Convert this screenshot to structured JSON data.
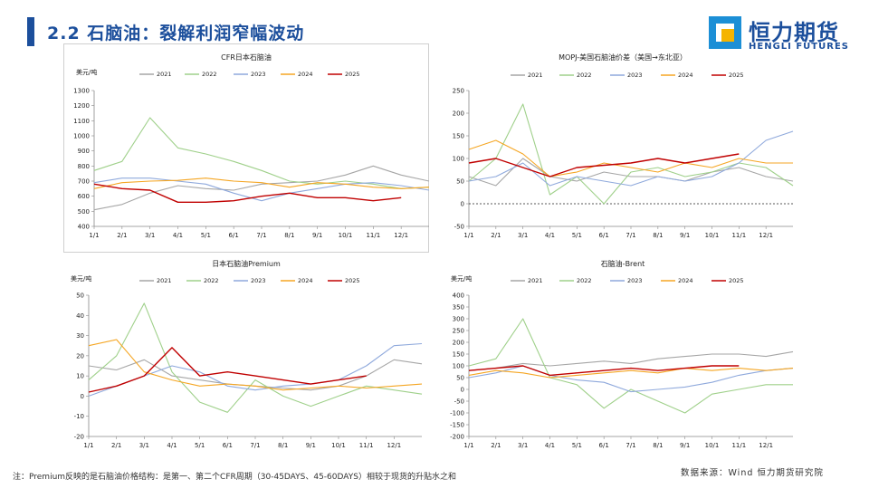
{
  "header": {
    "title": "2.2 石脑油：裂解利润窄幅波动"
  },
  "logo": {
    "name": "恒力期货",
    "subtitle": "HENGLI FUTURES"
  },
  "footer": {
    "note": "注：Premium反映的是石脑油价格结构：是第一、第二个CFR周期（30-45DAYS、45-60DAYS）相较于现货的升贴水之和",
    "source": "数据来源：Wind  恒力期货研究院"
  },
  "series_colors": {
    "2021": "#a6a6a6",
    "2022": "#9fd08a",
    "2023": "#8fa9dc",
    "2024": "#f5a623",
    "2025": "#c00000"
  },
  "chart_data": [
    {
      "type": "line",
      "title": "CFR日本石脑油",
      "unit": "美元/吨",
      "x_ticks": [
        "1/1",
        "2/1",
        "3/1",
        "4/1",
        "5/1",
        "6/1",
        "7/1",
        "8/1",
        "9/1",
        "10/1",
        "11/1",
        "12/1"
      ],
      "ylim": [
        400,
        1300
      ],
      "y_ticks": [
        400,
        500,
        600,
        700,
        800,
        900,
        1000,
        1100,
        1200,
        1300
      ],
      "zero_line": false,
      "series": [
        {
          "name": "2021",
          "values": [
            510,
            545,
            620,
            670,
            650,
            640,
            680,
            690,
            700,
            740,
            800,
            740,
            700
          ]
        },
        {
          "name": "2022",
          "values": [
            770,
            830,
            1120,
            920,
            880,
            830,
            770,
            700,
            680,
            700,
            680,
            650,
            660
          ]
        },
        {
          "name": "2023",
          "values": [
            690,
            720,
            720,
            700,
            680,
            620,
            570,
            620,
            650,
            680,
            690,
            670,
            640
          ]
        },
        {
          "name": "2024",
          "values": [
            650,
            690,
            700,
            705,
            720,
            700,
            690,
            660,
            690,
            680,
            660,
            650,
            660
          ]
        },
        {
          "name": "2025",
          "values": [
            680,
            650,
            640,
            560,
            560,
            570,
            600,
            620,
            590,
            590,
            570,
            590,
            null
          ]
        }
      ]
    },
    {
      "type": "line",
      "title": "MOPJ-美国石脑油价差（美国→东北亚）",
      "unit": "",
      "x_ticks": [
        "1/1",
        "2/1",
        "3/1",
        "4/1",
        "5/1",
        "6/1",
        "7/1",
        "8/1",
        "9/1",
        "10/1",
        "11/1",
        "12/1"
      ],
      "ylim": [
        -50,
        250
      ],
      "y_ticks": [
        -50,
        0,
        50,
        100,
        150,
        200,
        250
      ],
      "zero_line": true,
      "series": [
        {
          "name": "2021",
          "values": [
            60,
            40,
            100,
            60,
            50,
            70,
            60,
            60,
            50,
            70,
            80,
            60,
            50
          ]
        },
        {
          "name": "2022",
          "values": [
            50,
            100,
            220,
            20,
            60,
            0,
            70,
            80,
            60,
            70,
            90,
            80,
            40
          ]
        },
        {
          "name": "2023",
          "values": [
            50,
            60,
            90,
            40,
            60,
            50,
            40,
            60,
            50,
            60,
            90,
            140,
            160
          ]
        },
        {
          "name": "2024",
          "values": [
            120,
            140,
            110,
            60,
            70,
            90,
            80,
            70,
            90,
            80,
            100,
            90,
            90
          ]
        },
        {
          "name": "2025",
          "values": [
            90,
            100,
            80,
            60,
            80,
            85,
            90,
            100,
            90,
            100,
            110,
            null,
            null
          ]
        }
      ]
    },
    {
      "type": "line",
      "title": "日本石脑油Premium",
      "unit": "美元/吨",
      "x_ticks": [
        "1/1",
        "2/1",
        "3/1",
        "4/1",
        "5/1",
        "6/1",
        "7/1",
        "8/1",
        "9/1",
        "10/1",
        "11/1",
        "12/1"
      ],
      "ylim": [
        -20,
        50
      ],
      "y_ticks": [
        -20,
        -10,
        0,
        10,
        20,
        30,
        40,
        50
      ],
      "zero_line": false,
      "series": [
        {
          "name": "2021",
          "values": [
            15,
            13,
            18,
            10,
            8,
            6,
            5,
            4,
            3,
            5,
            10,
            18,
            16
          ]
        },
        {
          "name": "2022",
          "values": [
            8,
            20,
            46,
            12,
            -3,
            -8,
            8,
            0,
            -5,
            0,
            5,
            3,
            1
          ]
        },
        {
          "name": "2023",
          "values": [
            0,
            5,
            10,
            15,
            12,
            5,
            3,
            5,
            6,
            8,
            15,
            25,
            26
          ]
        },
        {
          "name": "2024",
          "values": [
            25,
            28,
            12,
            8,
            5,
            6,
            5,
            3,
            4,
            5,
            4,
            5,
            6
          ]
        },
        {
          "name": "2025",
          "values": [
            2,
            5,
            10,
            24,
            10,
            12,
            10,
            8,
            6,
            8,
            10,
            null,
            null
          ]
        }
      ]
    },
    {
      "type": "line",
      "title": "石脑油-Brent",
      "unit": "美元/吨",
      "x_ticks": [
        "1/1",
        "2/1",
        "3/1",
        "4/1",
        "5/1",
        "6/1",
        "7/1",
        "8/1",
        "9/1",
        "10/1",
        "11/1",
        "12/1"
      ],
      "ylim": [
        -200,
        400
      ],
      "y_ticks": [
        -200,
        -150,
        -100,
        -50,
        0,
        50,
        100,
        150,
        200,
        250,
        300,
        350,
        400
      ],
      "zero_line": false,
      "series": [
        {
          "name": "2021",
          "values": [
            80,
            90,
            110,
            100,
            110,
            120,
            110,
            130,
            140,
            150,
            150,
            140,
            160
          ]
        },
        {
          "name": "2022",
          "values": [
            100,
            130,
            300,
            50,
            20,
            -80,
            0,
            -50,
            -100,
            -20,
            0,
            20,
            20
          ]
        },
        {
          "name": "2023",
          "values": [
            50,
            70,
            100,
            60,
            40,
            30,
            -10,
            0,
            10,
            30,
            60,
            80,
            90
          ]
        },
        {
          "name": "2024",
          "values": [
            60,
            80,
            70,
            50,
            60,
            70,
            80,
            70,
            90,
            80,
            90,
            80,
            90
          ]
        },
        {
          "name": "2025",
          "values": [
            80,
            90,
            100,
            60,
            70,
            80,
            90,
            80,
            90,
            100,
            100,
            null,
            null
          ]
        }
      ]
    }
  ]
}
